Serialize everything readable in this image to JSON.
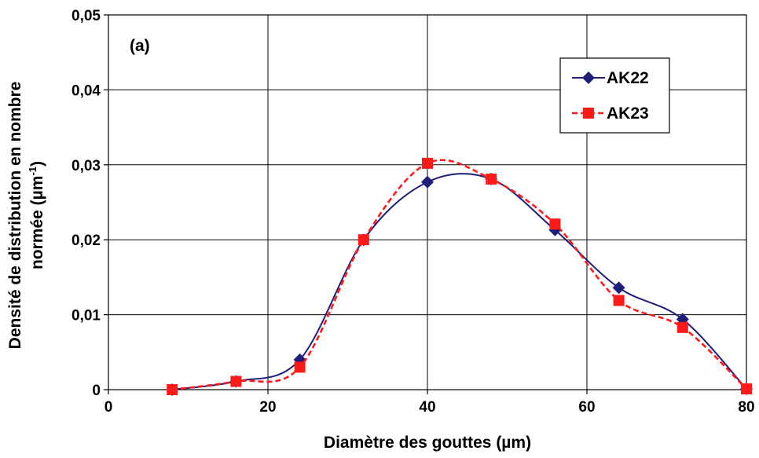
{
  "chart_data": {
    "type": "line",
    "panel_label": "(a)",
    "xlabel": "Diamètre des gouttes (µm)",
    "ylabel_line1": "Densité de distribution en nombre",
    "ylabel_line2_main": "normée (µm",
    "ylabel_line2_sup": "-1",
    "ylabel_line2_end": ")",
    "xlim": [
      0,
      80
    ],
    "ylim": [
      0,
      0.05
    ],
    "xticks": [
      0,
      20,
      40,
      60,
      80
    ],
    "xtick_labels": [
      "0",
      "20",
      "40",
      "60",
      "80"
    ],
    "yticks": [
      0,
      0.01,
      0.02,
      0.03,
      0.04,
      0.05
    ],
    "ytick_labels": [
      "0",
      "0,01",
      "0,02",
      "0,03",
      "0,04",
      "0,05"
    ],
    "grid": true,
    "legend_position": "top-right",
    "series": [
      {
        "name": "AK22",
        "color": "#1f1f7a",
        "marker": "diamond",
        "line_style": "solid",
        "x": [
          8,
          16,
          24,
          32,
          40,
          48,
          56,
          64,
          72,
          80
        ],
        "y": [
          0.0,
          0.0011,
          0.004,
          0.02,
          0.0277,
          0.0281,
          0.0213,
          0.0136,
          0.0094,
          0.0001
        ]
      },
      {
        "name": "AK23",
        "color": "#ff1a1a",
        "marker": "square",
        "line_style": "dashed",
        "x": [
          8,
          16,
          24,
          32,
          40,
          48,
          56,
          64,
          72,
          80
        ],
        "y": [
          0.0,
          0.0011,
          0.003,
          0.02,
          0.0302,
          0.0281,
          0.0221,
          0.0119,
          0.0083,
          0.0001
        ]
      }
    ]
  }
}
